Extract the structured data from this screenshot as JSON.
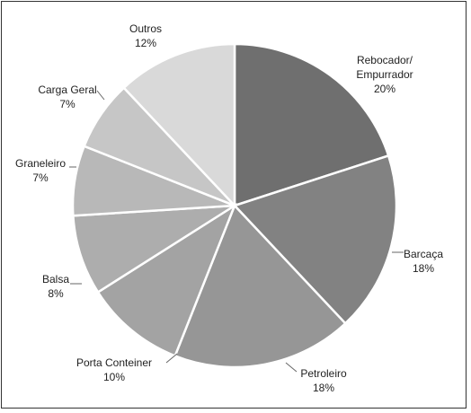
{
  "chart_data": {
    "type": "pie",
    "title": "",
    "start_angle_deg": 0,
    "direction": "clockwise",
    "legend": "none",
    "slices": [
      {
        "label_lines": [
          "Rebocador/",
          "Empurrador"
        ],
        "value_label": "20%",
        "value": 20,
        "color": "#6f6f6f"
      },
      {
        "label_lines": [
          "Barcaça"
        ],
        "value_label": "18%",
        "value": 18,
        "color": "#828282"
      },
      {
        "label_lines": [
          "Petroleiro"
        ],
        "value_label": "18%",
        "value": 18,
        "color": "#969696"
      },
      {
        "label_lines": [
          "Porta Conteiner"
        ],
        "value_label": "10%",
        "value": 10,
        "color": "#a3a3a3"
      },
      {
        "label_lines": [
          "Balsa"
        ],
        "value_label": "8%",
        "value": 8,
        "color": "#adadad"
      },
      {
        "label_lines": [
          "Graneleiro"
        ],
        "value_label": "7%",
        "value": 7,
        "color": "#b8b8b8"
      },
      {
        "label_lines": [
          "Carga Geral"
        ],
        "value_label": "7%",
        "value": 7,
        "color": "#c6c6c6"
      },
      {
        "label_lines": [
          "Outros"
        ],
        "value_label": "12%",
        "value": 12,
        "color": "#d9d9d9"
      }
    ]
  }
}
